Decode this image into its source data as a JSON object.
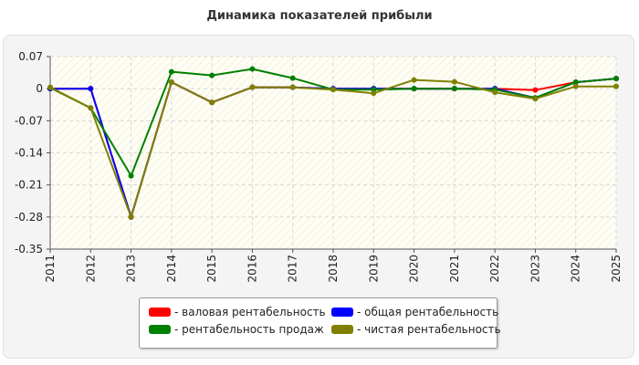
{
  "chart_data": {
    "type": "line",
    "title": "Динамика показателей прибыли",
    "xlabel": "",
    "ylabel": "",
    "x": [
      "2011",
      "2012",
      "2013",
      "2014",
      "2015",
      "2016",
      "2017",
      "2018",
      "2019",
      "2020",
      "2021",
      "2022",
      "2023",
      "2024",
      "2025"
    ],
    "ylim": [
      -0.35,
      0.07
    ],
    "yticks": [
      0.07,
      0,
      -0.07,
      -0.14,
      -0.21,
      -0.28,
      -0.35
    ],
    "ytick_labels": [
      "0.07",
      "0",
      "-0.07",
      "-0.14",
      "-0.21",
      "-0.28",
      "-0.35"
    ],
    "grid": true,
    "legend_position": "bottom-center",
    "series": [
      {
        "name": "- валовая рентабельность",
        "color": "#ff0000",
        "values": [
          0,
          0,
          -0.28,
          0.014,
          -0.03,
          0.003,
          0.003,
          0,
          0,
          0,
          0,
          0,
          -0.003,
          0.014,
          0.022
        ]
      },
      {
        "name": "- общая рентабельность",
        "color": "#0000ff",
        "values": [
          0,
          0,
          -0.28,
          0.014,
          -0.03,
          0.003,
          0.003,
          0,
          0,
          0,
          0,
          0,
          -0.02,
          0.014,
          0.022
        ]
      },
      {
        "name": "- рентабельность продаж",
        "color": "#008000",
        "values": [
          0.002,
          -0.042,
          -0.19,
          0.037,
          0.029,
          0.043,
          0.023,
          -0.002,
          -0.002,
          0,
          0,
          -0.002,
          -0.02,
          0.014,
          0.022
        ]
      },
      {
        "name": "- чистая рентабельность",
        "color": "#808000",
        "values": [
          0.003,
          -0.042,
          -0.28,
          0.014,
          -0.03,
          0.003,
          0.003,
          -0.002,
          -0.01,
          0.019,
          0.015,
          -0.008,
          -0.022,
          0.005,
          0.005
        ]
      }
    ]
  }
}
